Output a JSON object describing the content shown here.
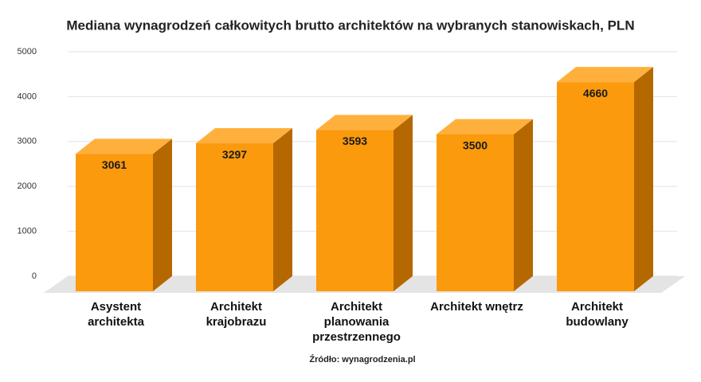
{
  "chart_data": {
    "type": "bar3d",
    "title": "Mediana wynagrodzeń całkowitych brutto architektów na wybranych stanowiskach, PLN",
    "categories": [
      "Asystent\narchitekta",
      "Architekt\nkrajobrazu",
      "Architekt\nplanowania\nprzestrzennego",
      "Architekt wnętrz",
      "Architekt\nbudowlany"
    ],
    "values": [
      3061,
      3297,
      3593,
      3500,
      4660
    ],
    "color": "#fb9a0c",
    "ylim": [
      0,
      5000
    ],
    "yticks": [
      0,
      1000,
      2000,
      3000,
      4000,
      5000
    ],
    "grid": true,
    "source": "Źródło: wynagrodzenia.pl"
  }
}
